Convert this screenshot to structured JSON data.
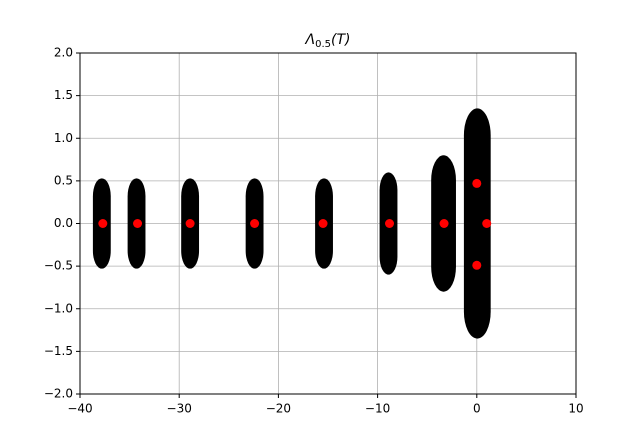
{
  "chart_data": {
    "type": "scatter",
    "title": {
      "symbol": "Λ",
      "subscript": "0.5",
      "argument": "(T)"
    },
    "xlim": [
      -40,
      10
    ],
    "xticks": [
      {
        "value": -40,
        "label": "−40"
      },
      {
        "value": -30,
        "label": "−30"
      },
      {
        "value": -20,
        "label": "−20"
      },
      {
        "value": -10,
        "label": "−10"
      },
      0,
      10
    ],
    "ylim": [
      -2,
      2
    ],
    "yticks": [
      {
        "value": -2,
        "label": "−2.0"
      },
      {
        "value": -1.5,
        "label": "−1.5"
      },
      {
        "value": -1,
        "label": "−1.0"
      },
      {
        "value": -0.5,
        "label": "−0.5"
      },
      {
        "value": 0,
        "label": "0.0"
      },
      {
        "value": 0.5,
        "label": "0.5"
      },
      {
        "value": 1,
        "label": "1.0"
      },
      {
        "value": 1.5,
        "label": "1.5"
      },
      {
        "value": 2,
        "label": "2.0"
      }
    ],
    "grid": true,
    "regions": {
      "color": "#000000",
      "items": [
        {
          "xmin": -38.7,
          "xmax": -36.9,
          "ymin": -0.53,
          "ymax": 0.53
        },
        {
          "xmin": -35.2,
          "xmax": -33.4,
          "ymin": -0.53,
          "ymax": 0.53
        },
        {
          "xmin": -29.8,
          "xmax": -28.0,
          "ymin": -0.53,
          "ymax": 0.53
        },
        {
          "xmin": -23.3,
          "xmax": -21.5,
          "ymin": -0.53,
          "ymax": 0.53
        },
        {
          "xmin": -16.3,
          "xmax": -14.5,
          "ymin": -0.53,
          "ymax": 0.53
        },
        {
          "xmin": -9.8,
          "xmax": -8.0,
          "ymin": -0.6,
          "ymax": 0.6
        },
        {
          "xmin": -4.6,
          "xmax": -2.1,
          "ymin": -0.8,
          "ymax": 0.8
        },
        {
          "xmin": -1.3,
          "xmax": 1.4,
          "ymin": -1.35,
          "ymax": 1.35
        }
      ]
    },
    "points": {
      "color": "#ff0000",
      "x": [
        -37.7,
        -34.2,
        -28.9,
        -22.4,
        -15.5,
        -8.8,
        -3.3,
        0,
        0,
        1
      ],
      "y": [
        0,
        0,
        0,
        0,
        0,
        0,
        0,
        0.47,
        -0.49,
        0
      ]
    }
  }
}
